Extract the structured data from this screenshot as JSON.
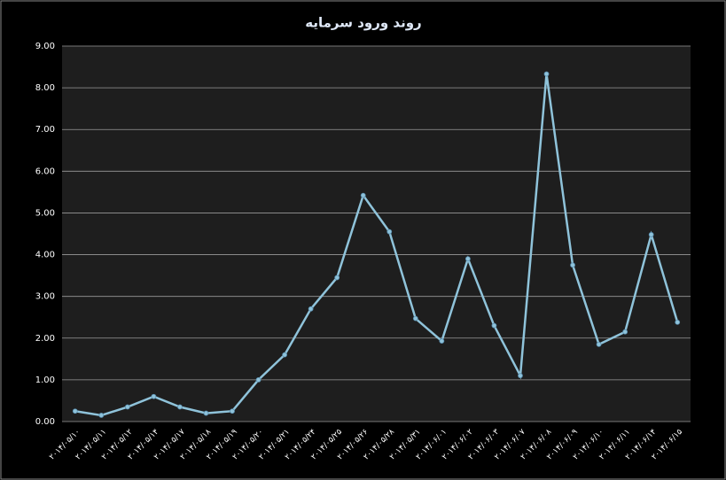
{
  "chart_data": {
    "type": "line",
    "title": "روند ورود سرمایه",
    "categories": [
      "۲۰۱۴/۰۵/۱۰",
      "۲۰۱۴/۰۵/۱۱",
      "۲۰۱۴/۰۵/۱۲",
      "۲۰۱۴/۰۵/۱۴",
      "۲۰۱۴/۰۵/۱۷",
      "۲۰۱۴/۰۵/۱۸",
      "۲۰۱۴/۰۵/۱۹",
      "۲۰۱۴/۰۵/۲۰",
      "۲۰۱۴/۰۵/۲۱",
      "۲۰۱۴/۰۵/۲۴",
      "۲۰۱۴/۰۵/۲۵",
      "۲۰۱۴/۰۵/۲۶",
      "۲۰۱۴/۰۵/۲۸",
      "۲۰۱۴/۰۵/۳۱",
      "۲۰۱۴/۰۶/۰۱",
      "۲۰۱۴/۰۶/۰۲",
      "۲۰۱۴/۰۶/۰۳",
      "۲۰۱۴/۰۶/۰۷",
      "۲۰۱۴/۰۶/۰۸",
      "۲۰۱۴/۰۶/۰۹",
      "۲۰۱۴/۰۶/۱۰",
      "۲۰۱۴/۰۶/۱۱",
      "۲۰۱۴/۰۶/۱۴",
      "۲۰۱۴/۰۶/۱۵"
    ],
    "values": [
      0.25,
      0.15,
      0.35,
      0.6,
      0.35,
      0.2,
      0.25,
      1.0,
      1.6,
      2.7,
      3.45,
      5.42,
      4.55,
      2.47,
      1.93,
      3.9,
      2.3,
      1.1,
      8.33,
      3.75,
      1.85,
      2.15,
      4.48,
      2.38
    ],
    "color": "#8fc3da",
    "ylim": [
      0,
      9
    ],
    "yticks": [
      {
        "value": 0,
        "label": "0.00"
      },
      {
        "value": 1,
        "label": "1.00"
      },
      {
        "value": 2,
        "label": "2.00"
      },
      {
        "value": 3,
        "label": "3.00"
      },
      {
        "value": 4,
        "label": "4.00"
      },
      {
        "value": 5,
        "label": "5.00"
      },
      {
        "value": 6,
        "label": "6.00"
      },
      {
        "value": 7,
        "label": "7.00"
      },
      {
        "value": 8,
        "label": "8.00"
      },
      {
        "value": 9,
        "label": "9.00"
      }
    ],
    "grid": true
  }
}
